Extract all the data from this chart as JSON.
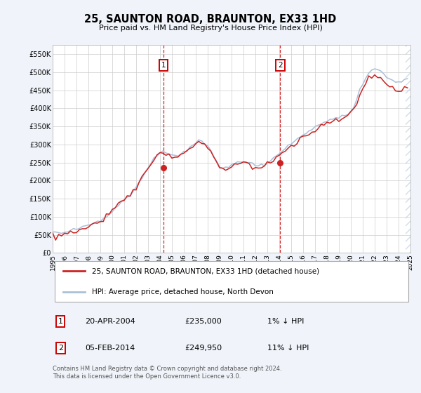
{
  "title": "25, SAUNTON ROAD, BRAUNTON, EX33 1HD",
  "subtitle": "Price paid vs. HM Land Registry's House Price Index (HPI)",
  "yticks": [
    0,
    50000,
    100000,
    150000,
    200000,
    250000,
    300000,
    350000,
    400000,
    450000,
    500000,
    550000
  ],
  "ytick_labels": [
    "£0",
    "£50K",
    "£100K",
    "£150K",
    "£200K",
    "£250K",
    "£300K",
    "£350K",
    "£400K",
    "£450K",
    "£500K",
    "£550K"
  ],
  "xmin_year": 1995,
  "xmax_year": 2025,
  "xtick_years": [
    1995,
    1996,
    1997,
    1998,
    1999,
    2000,
    2001,
    2002,
    2003,
    2004,
    2005,
    2006,
    2007,
    2008,
    2009,
    2010,
    2011,
    2012,
    2013,
    2014,
    2015,
    2016,
    2017,
    2018,
    2019,
    2020,
    2021,
    2022,
    2023,
    2024,
    2025
  ],
  "hpi_color": "#aabfd8",
  "price_color": "#cc2222",
  "sale1_x": 2004.3,
  "sale1_y": 235000,
  "sale2_x": 2014.08,
  "sale2_y": 249950,
  "legend_label_price": "25, SAUNTON ROAD, BRAUNTON, EX33 1HD (detached house)",
  "legend_label_hpi": "HPI: Average price, detached house, North Devon",
  "note1_label": "1",
  "note1_date": "20-APR-2004",
  "note1_price": "£235,000",
  "note1_change": "1% ↓ HPI",
  "note2_label": "2",
  "note2_date": "05-FEB-2014",
  "note2_price": "£249,950",
  "note2_change": "11% ↓ HPI",
  "footer": "Contains HM Land Registry data © Crown copyright and database right 2024.\nThis data is licensed under the Open Government Licence v3.0.",
  "background_color": "#f0f4fa",
  "plot_bg_color": "#ffffff",
  "grid_color": "#cccccc",
  "hpi_data_x": [
    1995.0,
    1995.25,
    1995.5,
    1995.75,
    1996.0,
    1996.25,
    1996.5,
    1996.75,
    1997.0,
    1997.25,
    1997.5,
    1997.75,
    1998.0,
    1998.25,
    1998.5,
    1998.75,
    1999.0,
    1999.25,
    1999.5,
    1999.75,
    2000.0,
    2000.25,
    2000.5,
    2000.75,
    2001.0,
    2001.25,
    2001.5,
    2001.75,
    2002.0,
    2002.25,
    2002.5,
    2002.75,
    2003.0,
    2003.25,
    2003.5,
    2003.75,
    2004.0,
    2004.25,
    2004.5,
    2004.75,
    2005.0,
    2005.25,
    2005.5,
    2005.75,
    2006.0,
    2006.25,
    2006.5,
    2006.75,
    2007.0,
    2007.25,
    2007.5,
    2007.75,
    2008.0,
    2008.25,
    2008.5,
    2008.75,
    2009.0,
    2009.25,
    2009.5,
    2009.75,
    2010.0,
    2010.25,
    2010.5,
    2010.75,
    2011.0,
    2011.25,
    2011.5,
    2011.75,
    2012.0,
    2012.25,
    2012.5,
    2012.75,
    2013.0,
    2013.25,
    2013.5,
    2013.75,
    2014.0,
    2014.25,
    2014.5,
    2014.75,
    2015.0,
    2015.25,
    2015.5,
    2015.75,
    2016.0,
    2016.25,
    2016.5,
    2016.75,
    2017.0,
    2017.25,
    2017.5,
    2017.75,
    2018.0,
    2018.25,
    2018.5,
    2018.75,
    2019.0,
    2019.25,
    2019.5,
    2019.75,
    2020.0,
    2020.25,
    2020.5,
    2020.75,
    2021.0,
    2021.25,
    2021.5,
    2021.75,
    2022.0,
    2022.25,
    2022.5,
    2022.75,
    2023.0,
    2023.25,
    2023.5,
    2023.75,
    2024.0,
    2024.25,
    2024.5,
    2024.75
  ],
  "hpi_data_y": [
    58000,
    57000,
    56500,
    56000,
    58000,
    60000,
    62000,
    64000,
    66000,
    69000,
    72000,
    74000,
    77000,
    80000,
    83000,
    86000,
    90000,
    96000,
    103000,
    110000,
    118000,
    126000,
    133000,
    140000,
    147000,
    155000,
    163000,
    172000,
    182000,
    196000,
    210000,
    224000,
    237000,
    250000,
    261000,
    270000,
    277000,
    280000,
    278000,
    274000,
    271000,
    270000,
    271000,
    273000,
    278000,
    284000,
    291000,
    298000,
    305000,
    308000,
    308000,
    304000,
    296000,
    283000,
    268000,
    252000,
    238000,
    232000,
    234000,
    238000,
    244000,
    248000,
    252000,
    254000,
    253000,
    250000,
    248000,
    246000,
    244000,
    243000,
    244000,
    246000,
    249000,
    254000,
    260000,
    267000,
    275000,
    282000,
    289000,
    295000,
    302000,
    309000,
    315000,
    321000,
    327000,
    333000,
    338000,
    342000,
    347000,
    352000,
    356000,
    360000,
    364000,
    367000,
    370000,
    373000,
    376000,
    380000,
    384000,
    388000,
    393000,
    405000,
    425000,
    448000,
    468000,
    485000,
    497000,
    505000,
    510000,
    508000,
    502000,
    495000,
    488000,
    482000,
    478000,
    475000,
    473000,
    475000,
    478000,
    482000
  ],
  "price_data_x": [
    1995.0,
    1995.25,
    1995.5,
    1995.75,
    1996.0,
    1996.25,
    1996.5,
    1996.75,
    1997.0,
    1997.25,
    1997.5,
    1997.75,
    1998.0,
    1998.25,
    1998.5,
    1998.75,
    1999.0,
    1999.25,
    1999.5,
    1999.75,
    2000.0,
    2000.25,
    2000.5,
    2000.75,
    2001.0,
    2001.25,
    2001.5,
    2001.75,
    2002.0,
    2002.25,
    2002.5,
    2002.75,
    2003.0,
    2003.25,
    2003.5,
    2003.75,
    2004.0,
    2004.25,
    2004.5,
    2004.75,
    2005.0,
    2005.25,
    2005.5,
    2005.75,
    2006.0,
    2006.25,
    2006.5,
    2006.75,
    2007.0,
    2007.25,
    2007.5,
    2007.75,
    2008.0,
    2008.25,
    2008.5,
    2008.75,
    2009.0,
    2009.25,
    2009.5,
    2009.75,
    2010.0,
    2010.25,
    2010.5,
    2010.75,
    2011.0,
    2011.25,
    2011.5,
    2011.75,
    2012.0,
    2012.25,
    2012.5,
    2012.75,
    2013.0,
    2013.25,
    2013.5,
    2013.75,
    2014.0,
    2014.25,
    2014.5,
    2014.75,
    2015.0,
    2015.25,
    2015.5,
    2015.75,
    2016.0,
    2016.25,
    2016.5,
    2016.75,
    2017.0,
    2017.25,
    2017.5,
    2017.75,
    2018.0,
    2018.25,
    2018.5,
    2018.75,
    2019.0,
    2019.25,
    2019.5,
    2019.75,
    2020.0,
    2020.25,
    2020.5,
    2020.75,
    2021.0,
    2021.25,
    2021.5,
    2021.75,
    2022.0,
    2022.25,
    2022.5,
    2022.75,
    2023.0,
    2023.25,
    2023.5,
    2023.75,
    2024.0,
    2024.25,
    2024.5,
    2024.75
  ],
  "price_data_y": [
    48000,
    47500,
    47000,
    46500,
    49000,
    51000,
    53000,
    55000,
    58000,
    62000,
    65000,
    68000,
    72000,
    76000,
    80000,
    84000,
    88000,
    94000,
    101000,
    108000,
    115000,
    123000,
    130000,
    137000,
    144000,
    152000,
    161000,
    170000,
    180000,
    194000,
    208000,
    222000,
    235000,
    248000,
    258000,
    267000,
    274000,
    277000,
    275000,
    271000,
    268000,
    267000,
    268000,
    270000,
    275000,
    281000,
    288000,
    295000,
    300000,
    303000,
    303000,
    299000,
    290000,
    278000,
    263000,
    248000,
    234000,
    228000,
    230000,
    234000,
    240000,
    244000,
    248000,
    250000,
    249000,
    246000,
    244000,
    242000,
    240000,
    239000,
    240000,
    242000,
    245000,
    250000,
    256000,
    263000,
    270000,
    277000,
    284000,
    290000,
    296000,
    303000,
    309000,
    315000,
    320000,
    326000,
    331000,
    335000,
    340000,
    345000,
    349000,
    353000,
    357000,
    360000,
    363000,
    366000,
    369000,
    372000,
    376000,
    380000,
    385000,
    397000,
    417000,
    438000,
    458000,
    472000,
    482000,
    488000,
    492000,
    488000,
    482000,
    474000,
    466000,
    460000,
    456000,
    452000,
    450000,
    452000,
    455000,
    458000
  ]
}
